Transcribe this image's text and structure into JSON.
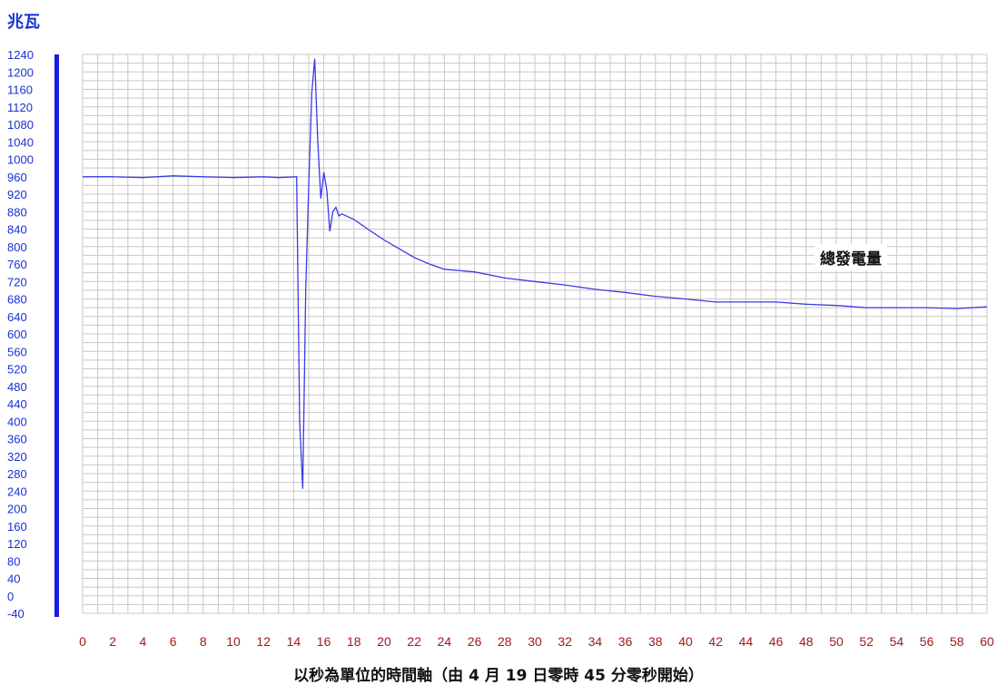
{
  "chart_data": {
    "type": "line",
    "ylabel": "兆瓦",
    "xlabel": "以秒為單位的時間軸（由 4 月 19 日零時 45 分零秒開始）",
    "annotation": "總發電量",
    "xlim": [
      0,
      60
    ],
    "ylim": [
      -40,
      1240
    ],
    "x_ticks": [
      0,
      2,
      4,
      6,
      8,
      10,
      12,
      14,
      16,
      18,
      20,
      22,
      24,
      26,
      28,
      30,
      32,
      34,
      36,
      38,
      40,
      42,
      44,
      46,
      48,
      50,
      52,
      54,
      56,
      58,
      60
    ],
    "y_ticks": [
      -40,
      0,
      40,
      80,
      120,
      160,
      200,
      240,
      280,
      320,
      360,
      400,
      440,
      480,
      520,
      560,
      600,
      640,
      680,
      720,
      760,
      800,
      840,
      880,
      920,
      960,
      1000,
      1040,
      1080,
      1120,
      1160,
      1200,
      1240
    ],
    "grid": true,
    "colors": {
      "line": "#3a3ae6",
      "ytick": "#1a2fd6",
      "xtick": "#a01c1c",
      "yaxis_bar": "#1a1ae6",
      "grid": "#c8c8c8"
    },
    "series": [
      {
        "x": [
          0,
          2,
          4,
          6,
          8,
          10,
          12,
          13,
          14.2,
          14.4,
          14.6,
          14.8,
          15.0,
          15.2,
          15.4,
          15.6,
          15.8,
          16.0,
          16.2,
          16.4,
          16.6,
          16.8,
          17.0,
          17.2,
          17.5,
          18.0,
          18.5,
          19.0,
          20.0,
          21.0,
          22.0,
          23.0,
          24.0,
          26.0,
          28.0,
          30.0,
          32.0,
          34.0,
          36.0,
          38.0,
          40.0,
          42.0,
          44.0,
          46.0,
          48.0,
          50.0,
          52.0,
          54.0,
          56.0,
          58.0,
          60.0
        ],
        "values": [
          960,
          960,
          958,
          962,
          960,
          958,
          960,
          958,
          960,
          400,
          245,
          700,
          940,
          1150,
          1230,
          1040,
          910,
          970,
          930,
          835,
          880,
          890,
          870,
          875,
          870,
          862,
          850,
          838,
          815,
          795,
          775,
          760,
          748,
          742,
          728,
          720,
          712,
          702,
          695,
          686,
          680,
          673,
          673,
          673,
          668,
          665,
          660,
          660,
          660,
          658,
          662
        ]
      }
    ]
  }
}
